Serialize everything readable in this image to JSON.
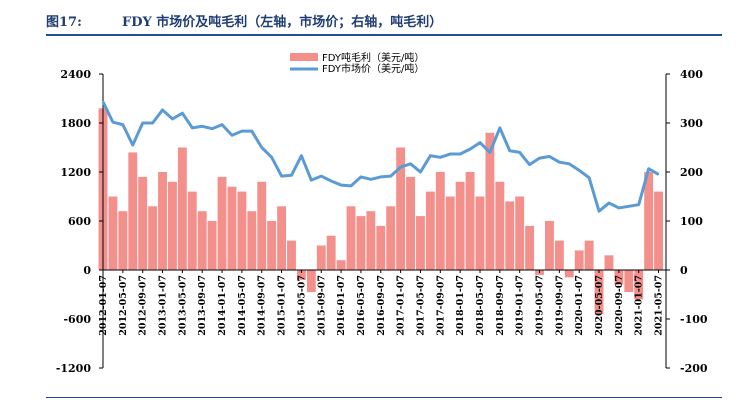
{
  "header": {
    "figure_label": "图17:",
    "title": "FDY 市场价及吨毛利（左轴，市场价；右轴，吨毛利）"
  },
  "chart_data": {
    "type": "bar+line",
    "title": "FDY 市场价及吨毛利（左轴，市场价；右轴，吨毛利）",
    "legend": [
      "FDY吨毛利（美元/吨）",
      "FDY市场价（美元/吨）"
    ],
    "legend_position": "top-center",
    "grid": false,
    "colors": {
      "margin_bars": "#f4908c",
      "price_line": "#5b9bd5",
      "axis": "#000000"
    },
    "left_axis": {
      "ylim": [
        -1200,
        2400
      ],
      "ticks": [
        -1200,
        -600,
        0,
        600,
        1200,
        1800,
        2400
      ]
    },
    "right_axis": {
      "ylim": [
        -200,
        400
      ],
      "ticks": [
        -200,
        -100,
        0,
        100,
        200,
        300,
        400
      ]
    },
    "x_tick_labels": [
      "2012-01-07",
      "2012-05-07",
      "2012-09-07",
      "2013-01-07",
      "2013-05-07",
      "2013-09-07",
      "2014-01-07",
      "2014-05-07",
      "2014-09-07",
      "2015-01-07",
      "2015-05-07",
      "2015-09-07",
      "2016-01-07",
      "2016-05-07",
      "2016-09-07",
      "2017-01-07",
      "2017-05-07",
      "2017-09-07",
      "2018-01-07",
      "2018-05-07",
      "2018-09-07",
      "2019-01-07",
      "2019-05-07",
      "2019-09-07",
      "2020-01-07",
      "2020-05-07",
      "2020-09-07",
      "2021-01-07",
      "2021-05-07"
    ],
    "series": [
      {
        "name": "FDY吨毛利（美元/吨）",
        "type": "bar",
        "axis": "right",
        "x": [
          "2012-01",
          "2012-03",
          "2012-05",
          "2012-07",
          "2012-09",
          "2012-11",
          "2013-01",
          "2013-03",
          "2013-05",
          "2013-07",
          "2013-09",
          "2013-11",
          "2014-01",
          "2014-03",
          "2014-05",
          "2014-07",
          "2014-09",
          "2014-11",
          "2015-01",
          "2015-03",
          "2015-05",
          "2015-07",
          "2015-09",
          "2015-11",
          "2016-01",
          "2016-03",
          "2016-05",
          "2016-07",
          "2016-09",
          "2016-11",
          "2017-01",
          "2017-03",
          "2017-05",
          "2017-07",
          "2017-09",
          "2017-11",
          "2018-01",
          "2018-03",
          "2018-05",
          "2018-07",
          "2018-09",
          "2018-11",
          "2019-01",
          "2019-03",
          "2019-05",
          "2019-07",
          "2019-09",
          "2019-11",
          "2020-01",
          "2020-03",
          "2020-05",
          "2020-07",
          "2020-09",
          "2020-11",
          "2021-01",
          "2021-03",
          "2021-05"
        ],
        "values": [
          330,
          150,
          120,
          240,
          190,
          130,
          200,
          180,
          250,
          160,
          120,
          100,
          190,
          170,
          160,
          120,
          180,
          100,
          130,
          60,
          -20,
          -45,
          50,
          70,
          20,
          130,
          110,
          120,
          90,
          130,
          250,
          190,
          110,
          160,
          200,
          150,
          180,
          200,
          150,
          280,
          180,
          140,
          150,
          90,
          -10,
          100,
          60,
          -15,
          40,
          60,
          -90,
          30,
          -30,
          -45,
          -60,
          200,
          160
        ]
      },
      {
        "name": "FDY市场价（美元/吨）",
        "type": "line",
        "axis": "left",
        "x": [
          "2012-01",
          "2012-03",
          "2012-05",
          "2012-07",
          "2012-09",
          "2012-11",
          "2013-01",
          "2013-03",
          "2013-05",
          "2013-07",
          "2013-09",
          "2013-11",
          "2014-01",
          "2014-03",
          "2014-05",
          "2014-07",
          "2014-09",
          "2014-11",
          "2015-01",
          "2015-03",
          "2015-05",
          "2015-07",
          "2015-09",
          "2015-11",
          "2016-01",
          "2016-03",
          "2016-05",
          "2016-07",
          "2016-09",
          "2016-11",
          "2017-01",
          "2017-03",
          "2017-05",
          "2017-07",
          "2017-09",
          "2017-11",
          "2018-01",
          "2018-03",
          "2018-05",
          "2018-07",
          "2018-09",
          "2018-11",
          "2019-01",
          "2019-03",
          "2019-05",
          "2019-07",
          "2019-09",
          "2019-11",
          "2020-01",
          "2020-03",
          "2020-05",
          "2020-07",
          "2020-09",
          "2020-11",
          "2021-01",
          "2021-03",
          "2021-05"
        ],
        "values": [
          2060,
          1810,
          1780,
          1530,
          1800,
          1800,
          1960,
          1850,
          1920,
          1740,
          1760,
          1730,
          1780,
          1650,
          1700,
          1700,
          1500,
          1380,
          1150,
          1160,
          1400,
          1100,
          1150,
          1090,
          1040,
          1030,
          1140,
          1110,
          1140,
          1150,
          1260,
          1300,
          1200,
          1400,
          1380,
          1420,
          1420,
          1480,
          1560,
          1440,
          1740,
          1460,
          1440,
          1290,
          1370,
          1390,
          1320,
          1300,
          1220,
          1130,
          720,
          820,
          760,
          780,
          800,
          1240,
          1170
        ]
      }
    ]
  }
}
